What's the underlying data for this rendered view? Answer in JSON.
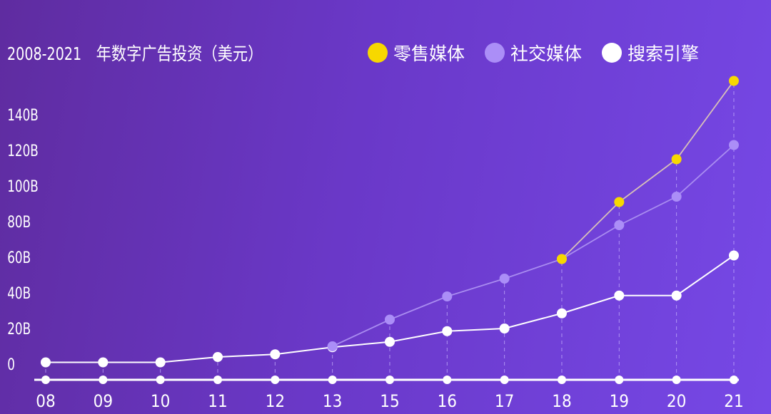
{
  "chart_data": {
    "type": "line",
    "title": "2008-2021",
    "subtitle": "年数字广告投资（美元）",
    "categories": [
      "08",
      "09",
      "10",
      "11",
      "12",
      "13",
      "15",
      "16",
      "17",
      "18",
      "19",
      "20",
      "21"
    ],
    "y_ticks": [
      "0",
      "20B",
      "40B",
      "60B",
      "80B",
      "100B",
      "120B",
      "140B"
    ],
    "ylim": [
      0,
      160
    ],
    "grid": false,
    "legend_placement": "top",
    "series": [
      {
        "name": "零售媒体",
        "color": "#f7d800",
        "line_color": "#d9c2b8",
        "values": [
          null,
          null,
          null,
          null,
          null,
          null,
          null,
          null,
          null,
          59,
          91,
          115,
          159
        ]
      },
      {
        "name": "社交媒体",
        "color": "#ab8ef7",
        "line_color": "#a98cf0",
        "values": [
          null,
          null,
          null,
          null,
          null,
          10,
          25,
          38,
          48,
          59,
          78,
          94,
          123
        ]
      },
      {
        "name": "搜索引擎",
        "color": "#ffffff",
        "line_color": "#ffffff",
        "values": [
          1,
          1,
          1,
          4,
          5.5,
          9.5,
          12.5,
          18.5,
          20,
          28.5,
          38.5,
          38.5,
          61
        ]
      }
    ]
  }
}
